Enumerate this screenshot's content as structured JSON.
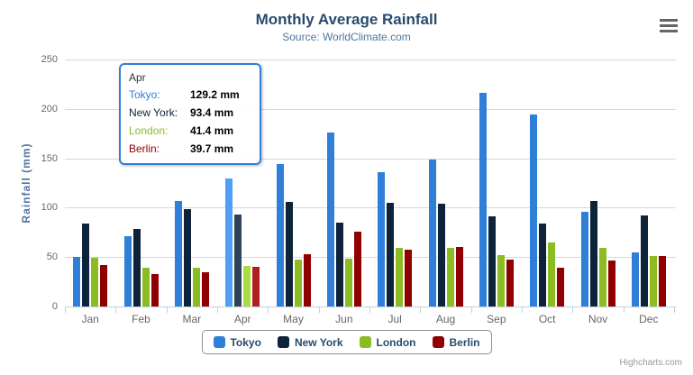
{
  "chart": {
    "credits": "Highcharts.com"
  },
  "icons": {
    "menu": "hamburger-menu-icon"
  },
  "chart_data": {
    "type": "bar",
    "title": "Monthly Average Rainfall",
    "subtitle": "Source: WorldClimate.com",
    "xlabel": "",
    "ylabel": "Rainfall (mm)",
    "ylim": [
      0,
      250
    ],
    "ytick_step": 50,
    "yticklabels": [
      "0",
      "50",
      "100",
      "150",
      "200",
      "250"
    ],
    "grid": "horizontal",
    "legend_position": "bottom",
    "value_unit": "mm",
    "categories": [
      "Jan",
      "Feb",
      "Mar",
      "Apr",
      "May",
      "Jun",
      "Jul",
      "Aug",
      "Sep",
      "Oct",
      "Nov",
      "Dec"
    ],
    "series": [
      {
        "name": "Tokyo",
        "color": "#2f7ed8",
        "hover_color": "#4f9ef8",
        "values": [
          49.9,
          71.5,
          106.4,
          129.2,
          144.0,
          176.0,
          135.6,
          148.5,
          216.4,
          194.1,
          95.6,
          54.4
        ]
      },
      {
        "name": "New York",
        "color": "#0d233a",
        "hover_color": "#2d435a",
        "values": [
          83.6,
          78.8,
          98.5,
          93.4,
          106.0,
          84.5,
          105.0,
          104.3,
          91.2,
          83.5,
          106.6,
          92.3
        ]
      },
      {
        "name": "London",
        "color": "#8bbc21",
        "hover_color": "#abdc41",
        "values": [
          48.9,
          38.8,
          39.3,
          41.4,
          47.0,
          48.3,
          59.0,
          59.6,
          52.4,
          65.2,
          59.3,
          51.2
        ]
      },
      {
        "name": "Berlin",
        "color": "#910000",
        "hover_color": "#b12020",
        "values": [
          42.4,
          33.2,
          34.5,
          39.7,
          52.6,
          75.5,
          57.4,
          60.4,
          47.6,
          39.1,
          46.8,
          51.1
        ]
      }
    ],
    "hovered_category": "Apr",
    "hovered_index": 3
  },
  "tooltip": {
    "header": "Apr",
    "rows": [
      {
        "label": "Tokyo:",
        "value": "129.2 mm",
        "color": "#2f7ed8"
      },
      {
        "label": "New York:",
        "value": "93.4 mm",
        "color": "#0d233a"
      },
      {
        "label": "London:",
        "value": "41.4 mm",
        "color": "#8bbc21"
      },
      {
        "label": "Berlin:",
        "value": "39.7 mm",
        "color": "#910000"
      }
    ],
    "border_color": "#2f7ed8"
  }
}
